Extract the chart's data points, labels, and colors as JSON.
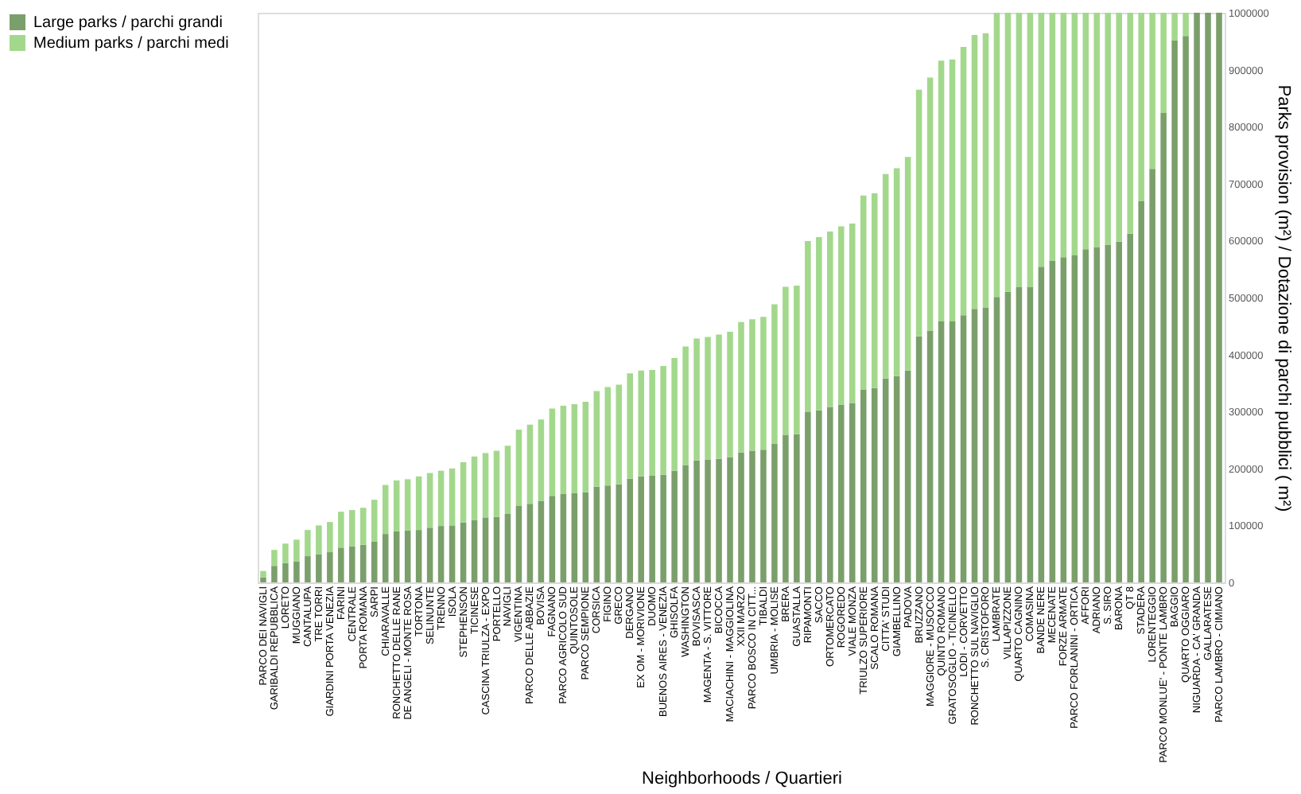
{
  "chart_data": {
    "type": "bar",
    "stacked": true,
    "xlabel": "Neighborhoods / Quartieri",
    "ylabel": "Parks provision (m²) / Dotazione di parchi pubblici ( m²)",
    "categories": [
      "PARCO DEI NAVIGLI",
      "GARIBALDI REPUBBLICA",
      "LORETO",
      "MUGGIANO",
      "CANTALUPA",
      "TRE TORRI",
      "GIARDINI PORTA VENEZIA",
      "FARINI",
      "CENTRALE",
      "PORTA ROMANA",
      "SARPI",
      "CHIARAVALLE",
      "RONCHETTO DELLE RANE",
      "DE ANGELI - MONTE ROSA",
      "TORTONA",
      "SELINUNTE",
      "TRENNO",
      "ISOLA",
      "STEPHENSON",
      "TICINESE",
      "CASCINA TRIULZA - EXPO",
      "PORTELLO",
      "NAVIGLI",
      "VIGENTINA",
      "PARCO DELLE ABBAZIE",
      "BOVISA",
      "FAGNANO",
      "PARCO AGRICOLO SUD",
      "QUINTOSOLE",
      "PARCO SEMPIONE",
      "CORSICA",
      "FIGINO",
      "GRECO",
      "DERGANO",
      "EX OM - MORIVIONE",
      "DUOMO",
      "BUENOS AIRES - VENEZIA",
      "GHISOLFA",
      "WASHINGTON",
      "BOVISASCA",
      "MAGENTA - S. VITTORE",
      "BICOCCA",
      "MACIACHINI - MAGGIOLINA",
      "XXII MARZO",
      "PARCO BOSCO IN CITT...",
      "TIBALDI",
      "UMBRIA - MOLISE",
      "BRERA",
      "GUASTALLA",
      "RIPAMONTI",
      "SACCO",
      "ORTOMERCATO",
      "ROGOREDO",
      "VIALE MONZA",
      "TRIULZO SUPERIORE",
      "SCALO ROMANA",
      "CITTA' STUDI",
      "GIAMBELLINO",
      "PADOVA",
      "BRUZZANO",
      "MAGGIORE - MUSOCCO",
      "QUINTO ROMANO",
      "GRATOSOGLIO - TICINELLO",
      "LODI - CORVETTO",
      "RONCHETTO SUL NAVIGLIO",
      "S. CRISTOFORO",
      "LAMBRATE",
      "VILLAPIZZONE",
      "QUARTO CAGNINO",
      "COMASINA",
      "BANDE NERE",
      "MECENATE",
      "FORZE ARMATE",
      "PARCO FORLANINI - ORTICA",
      "AFFORI",
      "ADRIANO",
      "S. SIRO",
      "BARONA",
      "QT 8",
      "STADERA",
      "LORENTEGGIO",
      "PARCO MONLUE' - PONTE LAMBRO",
      "BAGGIO",
      "QUARTO OGGIARO",
      "NIGUARDA - CA' GRANDA",
      "GALLARATESE",
      "PARCO LAMBRO - CIMIANO"
    ],
    "series": [
      {
        "name": "Large parks / parchi grandi",
        "color": "#7b9f6b",
        "values": [
          9000,
          29000,
          34000,
          37000,
          46000,
          49000,
          53000,
          61000,
          63000,
          66000,
          72000,
          85000,
          90000,
          91000,
          92000,
          96000,
          99000,
          100000,
          105000,
          109000,
          114000,
          115000,
          120000,
          134000,
          138000,
          143000,
          152000,
          155000,
          157000,
          158000,
          168000,
          170000,
          172000,
          182000,
          186000,
          187000,
          189000,
          196000,
          206000,
          214000,
          215000,
          217000,
          220000,
          228000,
          231000,
          233000,
          243000,
          259000,
          260000,
          299000,
          302000,
          308000,
          312000,
          315000,
          338000,
          341000,
          358000,
          362000,
          372000,
          432000,
          442000,
          458000,
          458000,
          469000,
          480000,
          482000,
          501000,
          510000,
          518000,
          519000,
          554000,
          565000,
          571000,
          574000,
          585000,
          588000,
          593000,
          598000,
          612000,
          669000,
          726000,
          824000,
          951000,
          959000,
          1000000,
          1000000,
          1000000
        ]
      },
      {
        "name": "Medium parks / parchi medi",
        "color": "#a3d88c",
        "values": [
          11000,
          28000,
          34000,
          38000,
          46000,
          51000,
          53000,
          63000,
          64000,
          65000,
          73000,
          86000,
          89000,
          90000,
          94000,
          96000,
          97000,
          100000,
          106000,
          112000,
          113000,
          116000,
          120000,
          134000,
          139000,
          143000,
          153000,
          155000,
          156000,
          159000,
          168000,
          173000,
          175000,
          185000,
          186000,
          186000,
          191000,
          198000,
          208000,
          214000,
          216000,
          218000,
          220000,
          229000,
          231000,
          233000,
          245000,
          260000,
          261000,
          300000,
          304000,
          308000,
          313000,
          315000,
          341000,
          342000,
          359000,
          365000,
          375000,
          433000,
          444000,
          458000,
          460000,
          471000,
          481000,
          482000,
          499000,
          490000,
          482000,
          481000,
          446000,
          435000,
          429000,
          426000,
          415000,
          412000,
          407000,
          402000,
          388000,
          331000,
          274000,
          176000,
          49000,
          41000,
          0,
          0,
          0
        ]
      }
    ],
    "ylim": [
      0,
      1000000
    ],
    "yticks": [
      0,
      100000,
      200000,
      300000,
      400000,
      500000,
      600000,
      700000,
      800000,
      900000,
      1000000
    ],
    "legend": "left",
    "grid": false
  }
}
